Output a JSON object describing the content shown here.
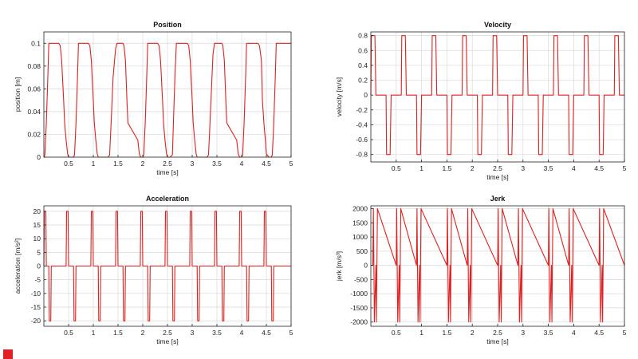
{
  "figure": {
    "line_color": "#e02020",
    "grid_color": "#d9d9d9",
    "axes_color": "#222222",
    "corner_mark_color": "#e11f26"
  },
  "chart_data": [
    {
      "type": "line",
      "title": "Position",
      "xlabel": "time [s]",
      "ylabel": "position [m]",
      "xlim": [
        0,
        5
      ],
      "ylim": [
        0,
        0.11
      ],
      "xticks": [
        "0.5",
        "1",
        "1.5",
        "2",
        "2.5",
        "3",
        "3.5",
        "4",
        "4.5",
        "5"
      ],
      "yticks": [
        "0",
        "0.02",
        "0.04",
        "0.06",
        "0.08",
        "0.1"
      ],
      "grid": true,
      "series": [
        {
          "x": [
            0.0,
            0.02,
            0.05,
            0.08,
            0.1,
            0.3,
            0.33,
            0.36,
            0.4,
            0.42,
            0.45,
            0.48,
            0.5,
            0.55,
            0.6,
            0.62,
            0.65,
            0.68,
            0.7,
            0.9,
            0.93,
            0.96,
            1.0,
            1.02,
            1.05,
            1.08,
            1.1,
            1.3,
            1.33,
            1.36,
            1.4,
            1.42,
            1.45,
            1.48,
            1.5,
            1.55,
            1.6,
            1.62,
            1.65,
            1.68,
            1.7,
            1.9,
            1.93,
            1.96,
            2.0,
            2.02,
            2.05,
            2.08,
            2.1,
            2.3,
            2.33,
            2.36,
            2.4,
            2.42,
            2.45,
            2.48,
            2.5,
            2.55,
            2.6,
            2.62,
            2.65,
            2.68,
            2.7,
            2.9,
            2.93,
            2.96,
            3.0,
            3.02,
            3.05,
            3.08,
            3.1,
            3.3,
            3.33,
            3.36,
            3.4,
            3.42,
            3.45,
            3.48,
            3.5,
            3.55,
            3.6,
            3.62,
            3.65,
            3.68,
            3.7,
            3.9,
            3.93,
            3.96,
            4.0,
            4.02,
            4.05,
            4.08,
            4.1,
            4.3,
            4.33,
            4.36,
            4.4,
            4.42,
            4.45,
            4.48,
            4.5,
            4.55,
            4.6,
            4.62,
            4.65,
            4.68,
            4.7,
            4.9,
            4.93,
            4.96,
            5.0
          ],
          "y": [
            0.0,
            0.002,
            0.03,
            0.07,
            0.1,
            0.1,
            0.098,
            0.085,
            0.05,
            0.03,
            0.015,
            0.003,
            0.0,
            0.0,
            0.0,
            0.002,
            0.03,
            0.07,
            0.1,
            0.1,
            0.098,
            0.085,
            0.05,
            0.03,
            0.015,
            0.003,
            0.0,
            0.0,
            0.002,
            0.03,
            0.07,
            0.08,
            0.095,
            0.1,
            0.1,
            0.1,
            0.1,
            0.098,
            0.085,
            0.05,
            0.03,
            0.015,
            0.003,
            0.0,
            0.0,
            0.002,
            0.03,
            0.07,
            0.1,
            0.1,
            0.098,
            0.085,
            0.05,
            0.03,
            0.015,
            0.003,
            0.0,
            0.0,
            0.002,
            0.03,
            0.07,
            0.1,
            0.1,
            0.1,
            0.098,
            0.085,
            0.05,
            0.03,
            0.015,
            0.003,
            0.0,
            0.0,
            0.002,
            0.03,
            0.07,
            0.09,
            0.1,
            0.1,
            0.1,
            0.1,
            0.1,
            0.098,
            0.085,
            0.05,
            0.03,
            0.015,
            0.003,
            0.0,
            0.0,
            0.002,
            0.03,
            0.07,
            0.1,
            0.1,
            0.1,
            0.098,
            0.085,
            0.05,
            0.03,
            0.015,
            0.003,
            0.0,
            0.0,
            0.002,
            0.03,
            0.07,
            0.1,
            0.1,
            0.1,
            0.1,
            0.1
          ]
        }
      ]
    },
    {
      "type": "line",
      "title": "Velocity",
      "xlabel": "time [s]",
      "ylabel": "velocity [m/s]",
      "xlim": [
        0,
        5
      ],
      "ylim": [
        -0.9,
        0.85
      ],
      "xticks": [
        "0.5",
        "1",
        "1.5",
        "2",
        "2.5",
        "3",
        "3.5",
        "4",
        "4.5",
        "5"
      ],
      "yticks": [
        "-0.8",
        "-0.6",
        "-0.4",
        "-0.2",
        "0",
        "0.2",
        "0.4",
        "0.6",
        "0.8"
      ],
      "grid": true,
      "series": [
        {
          "x": [
            0.0,
            0.01,
            0.03,
            0.08,
            0.1,
            0.12,
            0.3,
            0.31,
            0.33,
            0.38,
            0.4,
            0.42,
            0.6,
            0.61,
            0.63,
            0.68,
            0.7,
            0.72,
            0.9,
            0.91,
            0.93,
            0.98,
            1.0,
            1.02,
            1.2,
            1.21,
            1.23,
            1.28,
            1.3,
            1.32,
            1.5,
            1.51,
            1.53,
            1.58,
            1.6,
            1.62,
            1.8,
            1.81,
            1.83,
            1.88,
            1.9,
            1.92,
            2.1,
            2.11,
            2.13,
            2.18,
            2.2,
            2.22,
            2.4,
            2.41,
            2.43,
            2.48,
            2.5,
            2.52,
            2.7,
            2.71,
            2.73,
            2.78,
            2.8,
            2.82,
            3.0,
            3.01,
            3.03,
            3.08,
            3.1,
            3.12,
            3.3,
            3.31,
            3.33,
            3.38,
            3.4,
            3.42,
            3.6,
            3.61,
            3.63,
            3.68,
            3.7,
            3.72,
            3.9,
            3.91,
            3.93,
            3.98,
            4.0,
            4.02,
            4.2,
            4.21,
            4.23,
            4.28,
            4.3,
            4.32,
            4.5,
            4.51,
            4.53,
            4.58,
            4.6,
            4.62,
            4.8,
            4.81,
            4.83,
            4.88,
            4.9,
            4.92,
            5.0
          ],
          "y": [
            0.0,
            0.8,
            0.8,
            0.8,
            0.0,
            0.0,
            0.0,
            -0.8,
            -0.8,
            -0.8,
            0.0,
            0.0,
            0.0,
            0.8,
            0.8,
            0.8,
            0.0,
            0.0,
            0.0,
            -0.8,
            -0.8,
            -0.8,
            0.0,
            0.0,
            0.0,
            0.8,
            0.8,
            0.8,
            0.0,
            0.0,
            0.0,
            -0.8,
            -0.8,
            -0.8,
            0.0,
            0.0,
            0.0,
            0.8,
            0.8,
            0.8,
            0.0,
            0.0,
            0.0,
            -0.8,
            -0.8,
            -0.8,
            0.0,
            0.0,
            0.0,
            0.8,
            0.8,
            0.8,
            0.0,
            0.0,
            0.0,
            -0.8,
            -0.8,
            -0.8,
            0.0,
            0.0,
            0.0,
            0.8,
            0.8,
            0.8,
            0.0,
            0.0,
            0.0,
            -0.8,
            -0.8,
            -0.8,
            0.0,
            0.0,
            0.0,
            0.8,
            0.8,
            0.8,
            0.0,
            0.0,
            0.0,
            -0.8,
            -0.8,
            -0.8,
            0.0,
            0.0,
            0.0,
            0.8,
            0.8,
            0.8,
            0.0,
            0.0,
            0.0,
            -0.8,
            -0.8,
            -0.8,
            0.0,
            0.0,
            0.0,
            0.8,
            0.8,
            0.8,
            0.0,
            0.0,
            0.0
          ]
        }
      ]
    },
    {
      "type": "line",
      "title": "Acceleration",
      "xlabel": "time [s]",
      "ylabel": "acceleration [m/s²]",
      "xlim": [
        0,
        5
      ],
      "ylim": [
        -22,
        22
      ],
      "xticks": [
        "0.5",
        "1",
        "1.5",
        "2",
        "2.5",
        "3",
        "3.5",
        "4",
        "4.5",
        "5"
      ],
      "yticks": [
        "-20",
        "-15",
        "-10",
        "-5",
        "0",
        "5",
        "10",
        "15",
        "20"
      ],
      "grid": true,
      "series": [
        {
          "x": [
            0.0,
            0.01,
            0.04,
            0.05,
            0.06,
            0.1,
            0.11,
            0.14,
            0.15,
            0.16,
            0.45,
            0.46,
            0.49,
            0.5,
            0.51,
            0.6,
            0.61,
            0.64,
            0.65,
            0.66,
            0.95,
            0.96,
            0.99,
            1.0,
            1.01,
            1.1,
            1.11,
            1.14,
            1.15,
            1.16,
            1.45,
            1.46,
            1.49,
            1.5,
            1.51,
            1.6,
            1.61,
            1.64,
            1.65,
            1.66,
            1.95,
            1.96,
            1.99,
            2.0,
            2.01,
            2.1,
            2.11,
            2.14,
            2.15,
            2.16,
            2.45,
            2.46,
            2.49,
            2.5,
            2.51,
            2.6,
            2.61,
            2.64,
            2.65,
            2.66,
            2.95,
            2.96,
            2.99,
            3.0,
            3.01,
            3.1,
            3.11,
            3.14,
            3.15,
            3.16,
            3.45,
            3.46,
            3.49,
            3.5,
            3.51,
            3.6,
            3.61,
            3.64,
            3.65,
            3.66,
            3.95,
            3.96,
            3.99,
            4.0,
            4.01,
            4.1,
            4.11,
            4.14,
            4.15,
            4.16,
            4.45,
            4.46,
            4.49,
            4.5,
            4.51,
            4.6,
            4.61,
            4.64,
            4.65,
            4.66,
            5.0
          ],
          "y": [
            0,
            20,
            20,
            0,
            0,
            0,
            -20,
            -20,
            0,
            0,
            0,
            20,
            20,
            0,
            0,
            0,
            -20,
            -20,
            0,
            0,
            0,
            20,
            20,
            0,
            0,
            0,
            -20,
            -20,
            0,
            0,
            0,
            20,
            20,
            0,
            0,
            0,
            -20,
            -20,
            0,
            0,
            0,
            20,
            20,
            0,
            0,
            0,
            -20,
            -20,
            0,
            0,
            0,
            20,
            20,
            0,
            0,
            0,
            -20,
            -20,
            0,
            0,
            0,
            20,
            20,
            0,
            0,
            0,
            -20,
            -20,
            0,
            0,
            0,
            20,
            20,
            0,
            0,
            0,
            -20,
            -20,
            0,
            0,
            0,
            20,
            20,
            0,
            0,
            0,
            -20,
            -20,
            0,
            0,
            0,
            20,
            20,
            0,
            0,
            0,
            -20,
            -20,
            0,
            0,
            0
          ]
        }
      ]
    },
    {
      "type": "line",
      "title": "Jerk",
      "xlabel": "time [s]",
      "ylabel": "jerk [m/s³]",
      "xlim": [
        0,
        5
      ],
      "ylim": [
        -2150,
        2100
      ],
      "xticks": [
        "0.5",
        "1",
        "1.5",
        "2",
        "2.5",
        "3",
        "3.5",
        "4",
        "4.5",
        "5"
      ],
      "yticks": [
        "-2000",
        "-1500",
        "-1000",
        "-500",
        "0",
        "500",
        "1000",
        "1500",
        "2000"
      ],
      "grid": true,
      "series": [
        {
          "x": [
            0.0,
            0.04,
            0.05,
            0.06,
            0.07,
            0.1,
            0.11,
            0.12,
            0.13,
            0.5,
            0.51,
            0.52,
            0.53,
            0.56,
            0.57,
            0.58,
            0.59,
            0.9,
            0.91,
            0.92,
            0.93,
            0.96,
            0.97,
            0.98,
            0.99,
            1.5,
            1.51,
            1.52,
            1.53,
            1.56,
            1.57,
            1.58,
            1.59,
            1.9,
            1.91,
            1.92,
            1.93,
            1.96,
            1.97,
            1.98,
            1.99,
            2.5,
            2.51,
            2.52,
            2.53,
            2.56,
            2.57,
            2.58,
            2.59,
            2.9,
            2.91,
            2.92,
            2.93,
            2.96,
            2.97,
            2.98,
            2.99,
            3.5,
            3.51,
            3.52,
            3.53,
            3.56,
            3.57,
            3.58,
            3.59,
            3.9,
            3.91,
            3.92,
            3.93,
            3.96,
            3.97,
            3.98,
            3.99,
            4.5,
            4.51,
            4.52,
            4.53,
            4.56,
            4.57,
            4.58,
            4.59,
            5.0
          ],
          "y": [
            0,
            0,
            2000,
            0,
            -2000,
            0,
            -2000,
            0,
            2000,
            0,
            2000,
            0,
            -2000,
            0,
            -2000,
            0,
            2000,
            0,
            2000,
            0,
            -2000,
            0,
            -2000,
            0,
            2000,
            0,
            2000,
            0,
            -2000,
            0,
            -2000,
            0,
            2000,
            0,
            2000,
            0,
            -2000,
            0,
            -2000,
            0,
            2000,
            0,
            2000,
            0,
            -2000,
            0,
            -2000,
            0,
            2000,
            0,
            2000,
            0,
            -2000,
            0,
            -2000,
            0,
            2000,
            0,
            2000,
            0,
            -2000,
            0,
            -2000,
            0,
            2000,
            0,
            2000,
            0,
            -2000,
            0,
            -2000,
            0,
            2000,
            0,
            2000,
            0,
            -2000,
            0,
            -2000,
            0,
            2000,
            0
          ]
        }
      ]
    }
  ]
}
